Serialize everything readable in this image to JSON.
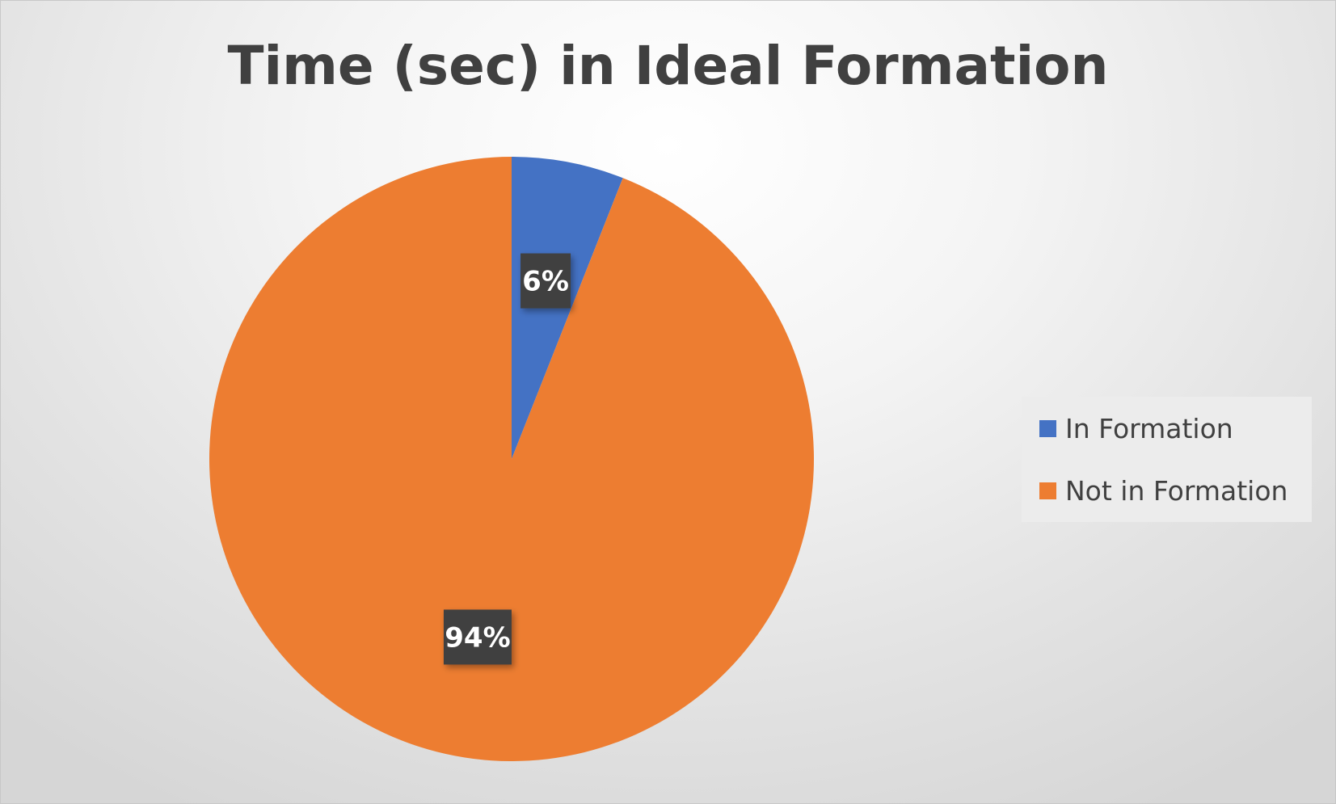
{
  "chart_data": {
    "type": "pie",
    "title": "Time (sec) in Ideal Formation",
    "categories": [
      "In Formation",
      "Not in Formation"
    ],
    "values": [
      6,
      94
    ],
    "value_labels": [
      "6%",
      "94%"
    ],
    "colors": [
      "#4472c4",
      "#ed7d31"
    ],
    "legend_position": "right",
    "start_angle": "12 o'clock",
    "direction": "clockwise"
  }
}
